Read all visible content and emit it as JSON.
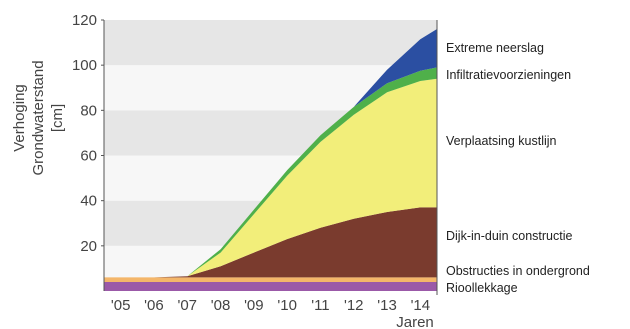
{
  "chart_data": {
    "type": "area",
    "title": "",
    "ylabel_lines": [
      "Verhoging",
      "Grondwaterstand",
      "[cm]"
    ],
    "xlabel": "Jaren",
    "x": [
      2004.5,
      2005,
      2006,
      2007,
      2008,
      2009,
      2010,
      2011,
      2012,
      2013,
      2014,
      2014.5
    ],
    "x_tick_labels": [
      "'05",
      "'06",
      "'07",
      "'08",
      "'09",
      "'10",
      "'11",
      "'12",
      "'13",
      "'14"
    ],
    "y_ticks": [
      "20",
      "40",
      "60",
      "80",
      "100",
      "120"
    ],
    "ylim": [
      0,
      120
    ],
    "grid": "alternating horizontal bands",
    "stack_order": "bottom-to-top",
    "series": [
      {
        "name": "Rioollekkage",
        "color": "#9b59a8",
        "values": [
          4,
          4,
          4,
          4,
          4,
          4,
          4,
          4,
          4,
          4,
          4,
          4
        ]
      },
      {
        "name": "Obstructies in ondergrond",
        "color": "#f4b66a",
        "values": [
          2,
          2,
          2,
          2,
          2,
          2,
          2,
          2,
          2,
          2,
          2,
          2
        ]
      },
      {
        "name": "Dijk-in-duin constructie",
        "color": "#7a3b2e",
        "values": [
          0,
          0,
          0,
          0.5,
          5,
          11,
          17,
          22,
          26,
          29,
          31,
          31
        ]
      },
      {
        "name": "Verplaatsing kustlijn",
        "color": "#f2ee7a",
        "values": [
          0,
          0,
          0,
          0,
          6,
          17,
          28,
          38,
          46,
          53,
          56,
          57
        ]
      },
      {
        "name": "Infiltratievoorzieningen",
        "color": "#4fb04a",
        "values": [
          0,
          0,
          0,
          0,
          1.5,
          2,
          2.5,
          3,
          3.5,
          4,
          4.5,
          5
        ]
      },
      {
        "name": "Extreme neerslag",
        "color": "#2b4fa2",
        "values": [
          0,
          0,
          0,
          0,
          0,
          0,
          0,
          0,
          0,
          6,
          14,
          17
        ]
      }
    ]
  },
  "colors": {
    "band_grey": "#e6e6e6",
    "band_white": "#f7f7f7",
    "axis": "#555555"
  }
}
